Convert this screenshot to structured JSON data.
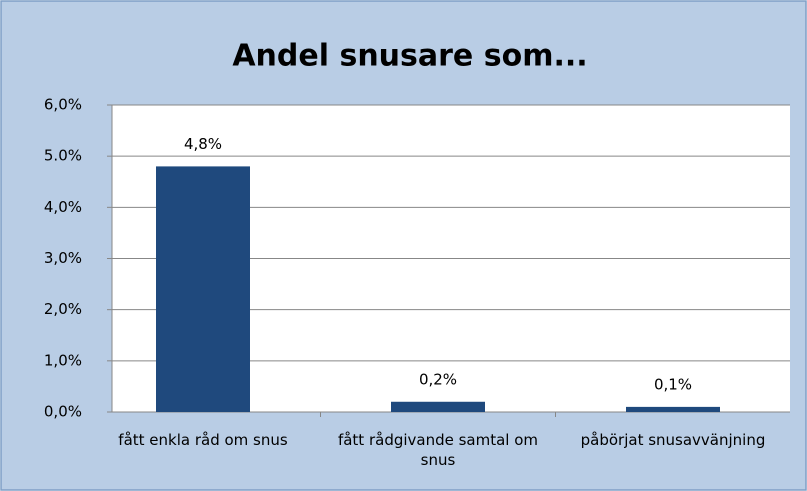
{
  "chart_data": {
    "type": "bar",
    "title": "Andel snusare som...",
    "categories": [
      "fått enkla råd om snus",
      "fått rådgivande samtal om snus",
      "påbörjat snusavvänjning"
    ],
    "values": [
      4.8,
      0.2,
      0.1
    ],
    "value_labels": [
      "4,8%",
      "0,2%",
      "0,1%"
    ],
    "color": "#1f497d",
    "ylim": [
      0,
      6
    ],
    "yticks": [
      {
        "value": 0,
        "label": "0,0%"
      },
      {
        "value": 1,
        "label": "1,0%"
      },
      {
        "value": 2,
        "label": "2,0%"
      },
      {
        "value": 3,
        "label": "3,0%"
      },
      {
        "value": 4,
        "label": "4,0%"
      },
      {
        "value": 5,
        "label": "5.0%"
      },
      {
        "value": 6,
        "label": "6,0%"
      }
    ],
    "grid": true
  }
}
